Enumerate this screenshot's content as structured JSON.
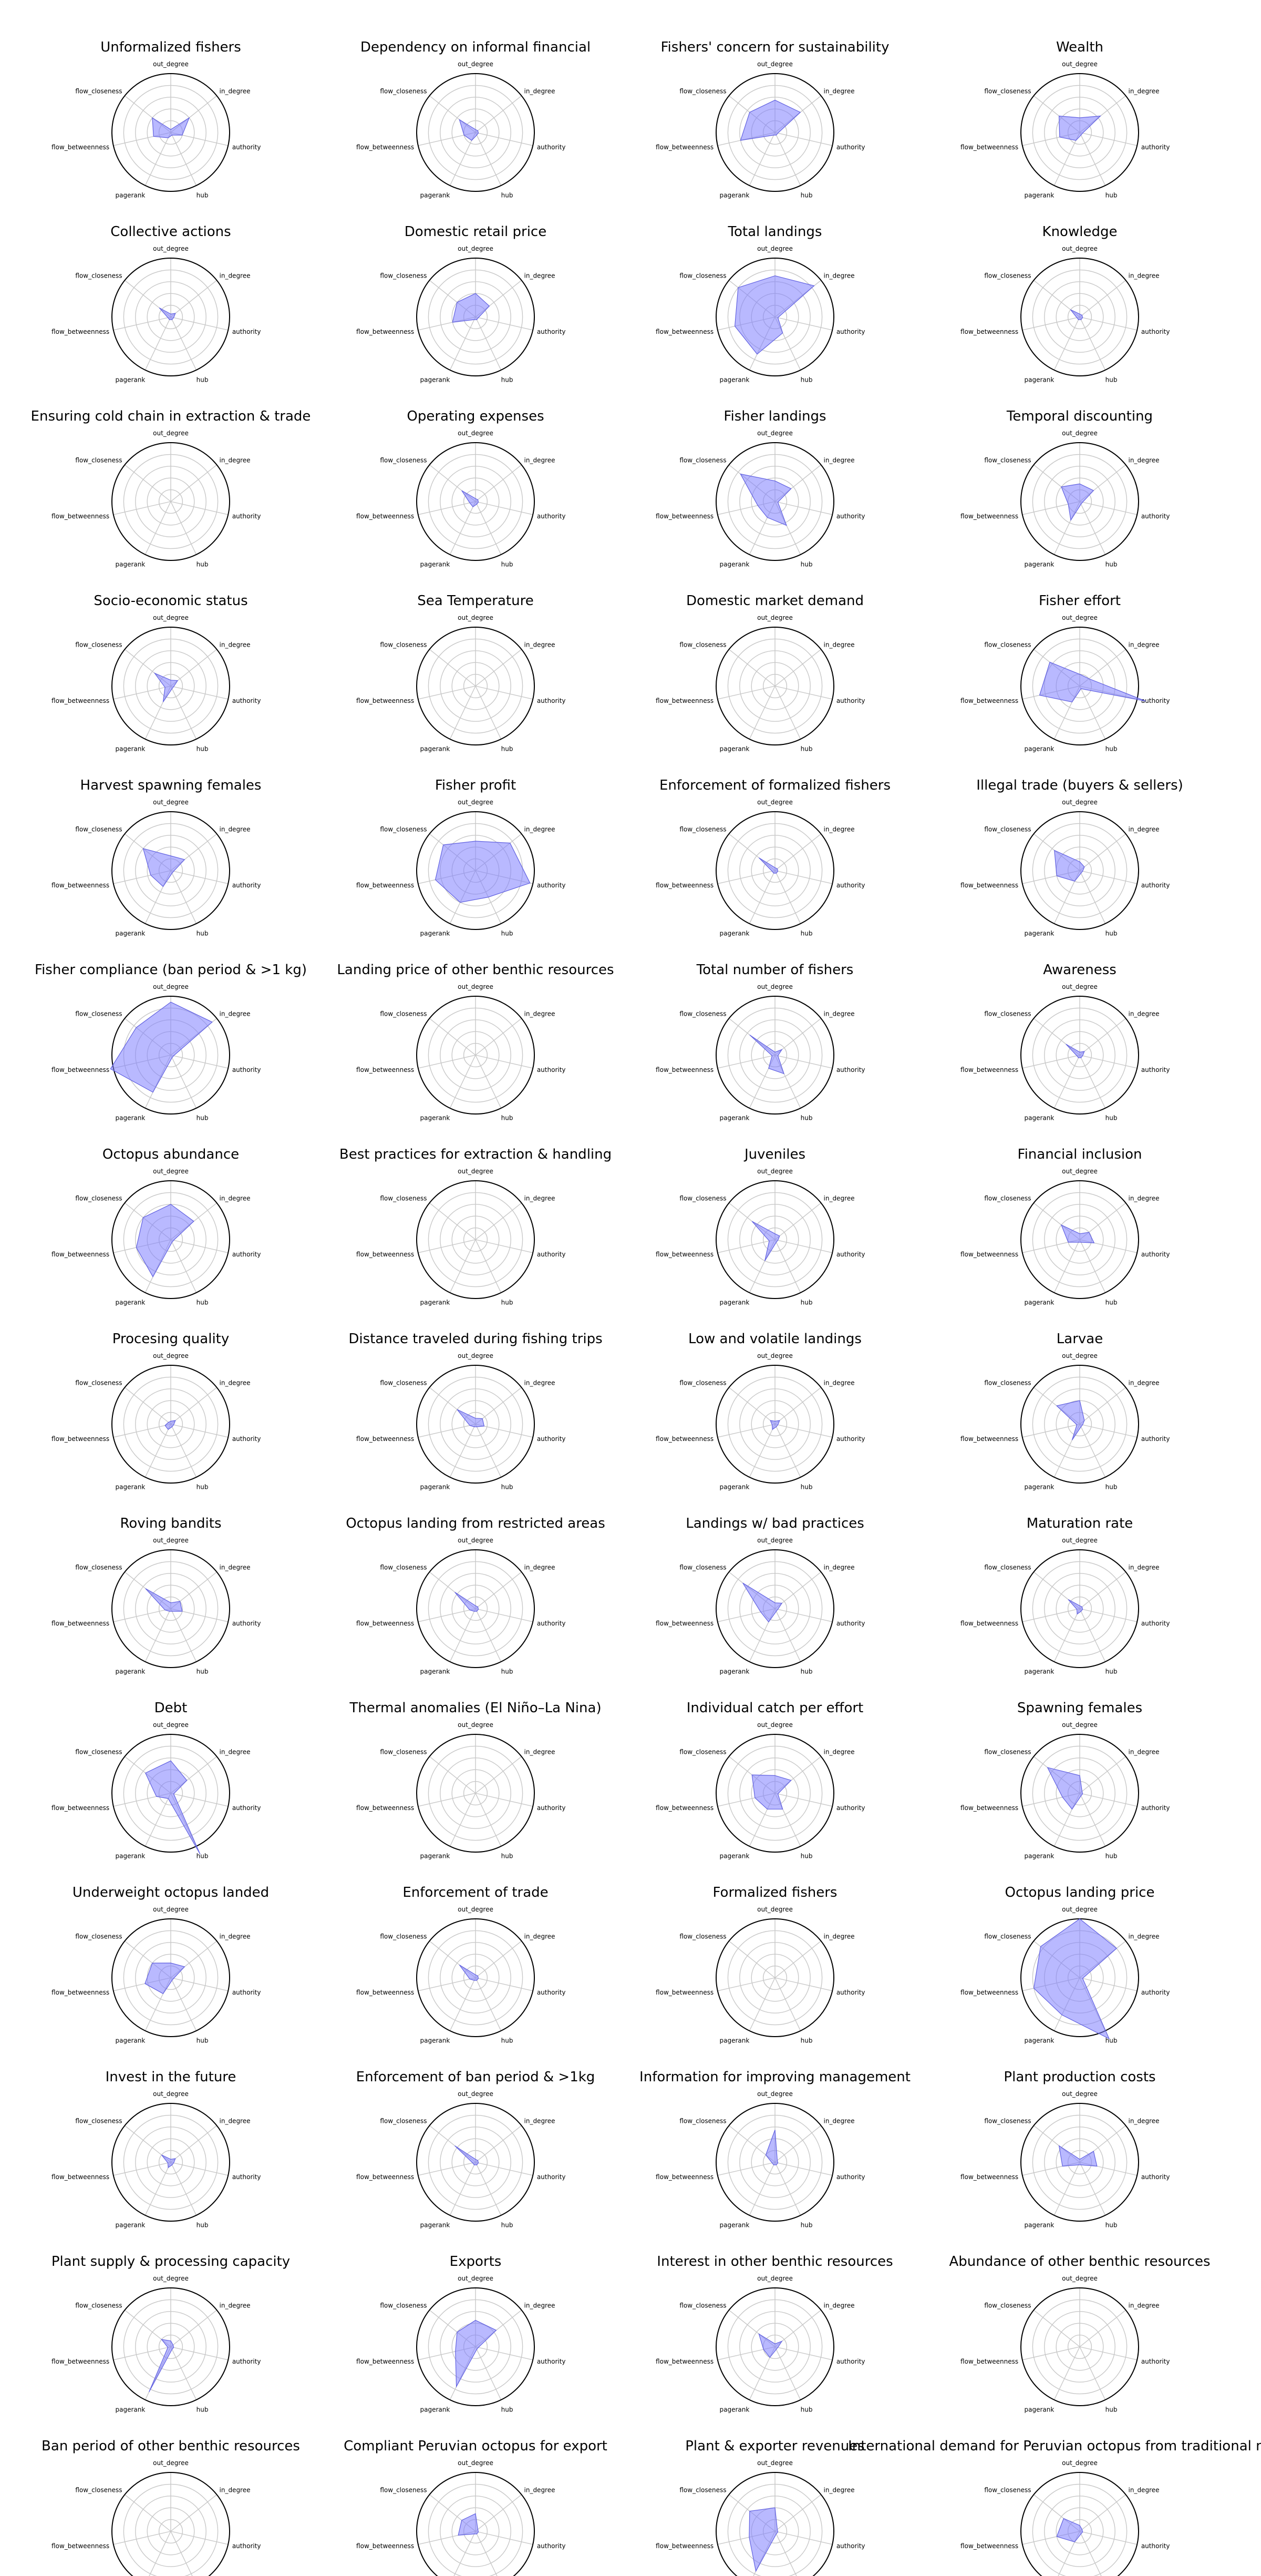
{
  "axes": [
    "out_degree",
    "in_degree",
    "authority",
    "hub",
    "pagerank",
    "flow_betweenness",
    "flow_closeness"
  ],
  "colors": {
    "fill": "#8080ff",
    "stroke": "#6060e0",
    "grid": "#c8c8c8",
    "outline": "#000000"
  },
  "chart_data": [
    {
      "type": "radar",
      "title": "Unformalized fishers",
      "values": [
        0.05,
        0.4,
        0.2,
        0.05,
        0.1,
        0.3,
        0.4
      ]
    },
    {
      "type": "radar",
      "title": "Dependency on informal financial",
      "values": [
        0.05,
        0.05,
        0.05,
        0.05,
        0.15,
        0.2,
        0.35
      ]
    },
    {
      "type": "radar",
      "title": "Fishers' concern for sustainability",
      "values": [
        0.55,
        0.55,
        0.05,
        0.05,
        0.05,
        0.6,
        0.55
      ]
    },
    {
      "type": "radar",
      "title": "Wealth",
      "values": [
        0.25,
        0.45,
        0.05,
        0.05,
        0.15,
        0.35,
        0.45
      ]
    },
    {
      "type": "radar",
      "title": "Collective actions",
      "values": [
        0.05,
        0.1,
        0.05,
        0.05,
        0.05,
        0.05,
        0.25
      ]
    },
    {
      "type": "radar",
      "title": "Domestic retail price",
      "values": [
        0.4,
        0.3,
        0.05,
        0.05,
        0.05,
        0.4,
        0.4
      ]
    },
    {
      "type": "radar",
      "title": "Total landings",
      "values": [
        0.7,
        0.85,
        0.05,
        0.3,
        0.7,
        0.7,
        0.8
      ]
    },
    {
      "type": "radar",
      "title": "Knowledge",
      "values": [
        0.05,
        0.05,
        0.05,
        0.05,
        0.05,
        0.05,
        0.2
      ]
    },
    {
      "type": "radar",
      "title": "Ensuring cold chain  in extraction & trade",
      "values": [
        0.0,
        0.0,
        0.0,
        0.0,
        0.0,
        0.0,
        0.0
      ]
    },
    {
      "type": "radar",
      "title": "Operating expenses",
      "values": [
        0.05,
        0.05,
        0.05,
        0.05,
        0.1,
        0.1,
        0.3
      ]
    },
    {
      "type": "radar",
      "title": "Fisher landings",
      "values": [
        0.35,
        0.35,
        0.05,
        0.45,
        0.3,
        0.3,
        0.75
      ]
    },
    {
      "type": "radar",
      "title": "Temporal discounting",
      "values": [
        0.3,
        0.3,
        0.05,
        0.05,
        0.35,
        0.2,
        0.4
      ]
    },
    {
      "type": "radar",
      "title": "Socio-economic status",
      "values": [
        0.1,
        0.15,
        0.05,
        0.05,
        0.3,
        0.1,
        0.35
      ]
    },
    {
      "type": "radar",
      "title": "Sea Temperature",
      "values": [
        0.0,
        0.0,
        0.0,
        0.0,
        0.0,
        0.0,
        0.0
      ]
    },
    {
      "type": "radar",
      "title": "Domestic market demand",
      "values": [
        0.0,
        0.0,
        0.0,
        0.0,
        0.0,
        0.0,
        0.0
      ]
    },
    {
      "type": "radar",
      "title": "Fisher effort",
      "values": [
        0.2,
        0.2,
        1.15,
        0.05,
        0.3,
        0.7,
        0.65
      ]
    },
    {
      "type": "radar",
      "title": "Harvest spawning females",
      "values": [
        0.25,
        0.3,
        0.05,
        0.05,
        0.3,
        0.35,
        0.6
      ]
    },
    {
      "type": "radar",
      "title": "Fisher profit",
      "values": [
        0.5,
        0.75,
        0.95,
        0.5,
        0.6,
        0.7,
        0.7
      ]
    },
    {
      "type": "radar",
      "title": "Enforcement of formalized fishers",
      "values": [
        0.05,
        0.05,
        0.05,
        0.05,
        0.05,
        0.05,
        0.35
      ]
    },
    {
      "type": "radar",
      "title": "Illegal trade (buyers & sellers)",
      "values": [
        0.15,
        0.1,
        0.05,
        0.05,
        0.2,
        0.4,
        0.55
      ]
    },
    {
      "type": "radar",
      "title": "Fisher compliance (ban period & >1 kg)",
      "values": [
        0.9,
        0.9,
        0.05,
        0.05,
        0.7,
        1.05,
        0.75
      ]
    },
    {
      "type": "radar",
      "title": "Landing price of other benthic resources",
      "values": [
        0.0,
        0.0,
        0.0,
        0.0,
        0.0,
        0.0,
        0.0
      ]
    },
    {
      "type": "radar",
      "title": "Total number of fishers",
      "values": [
        0.05,
        0.15,
        0.05,
        0.35,
        0.25,
        0.05,
        0.55
      ]
    },
    {
      "type": "radar",
      "title": "Awareness",
      "values": [
        0.05,
        0.1,
        0.05,
        0.05,
        0.05,
        0.05,
        0.3
      ]
    },
    {
      "type": "radar",
      "title": "Octopus abundance",
      "values": [
        0.6,
        0.5,
        0.05,
        0.05,
        0.7,
        0.6,
        0.6
      ]
    },
    {
      "type": "radar",
      "title": "Best practices for  extraction & handling",
      "values": [
        0.0,
        0.0,
        0.0,
        0.0,
        0.0,
        0.0,
        0.0
      ]
    },
    {
      "type": "radar",
      "title": "Juveniles",
      "values": [
        0.1,
        0.1,
        0.05,
        0.05,
        0.4,
        0.1,
        0.5
      ]
    },
    {
      "type": "radar",
      "title": "Financial inclusion",
      "values": [
        0.1,
        0.2,
        0.25,
        0.05,
        0.05,
        0.2,
        0.4
      ]
    },
    {
      "type": "radar",
      "title": "Procesing quality",
      "values": [
        0.05,
        0.1,
        0.05,
        0.05,
        0.1,
        0.1,
        0.05
      ]
    },
    {
      "type": "radar",
      "title": "Distance traveled during fishing trips",
      "values": [
        0.1,
        0.15,
        0.15,
        0.05,
        0.05,
        0.1,
        0.4
      ]
    },
    {
      "type": "radar",
      "title": "Low and volatile landings",
      "values": [
        0.05,
        0.1,
        0.05,
        0.05,
        0.1,
        0.05,
        0.1
      ]
    },
    {
      "type": "radar",
      "title": "Larvae",
      "values": [
        0.4,
        0.1,
        0.05,
        0.05,
        0.3,
        0.05,
        0.5
      ]
    },
    {
      "type": "radar",
      "title": "Roving bandits",
      "values": [
        0.1,
        0.2,
        0.2,
        0.05,
        0.05,
        0.1,
        0.55
      ]
    },
    {
      "type": "radar",
      "title": "Octopus landing from restricted areas",
      "values": [
        0.05,
        0.05,
        0.05,
        0.05,
        0.05,
        0.1,
        0.45
      ]
    },
    {
      "type": "radar",
      "title": "Landings w/ bad practices",
      "values": [
        0.1,
        0.15,
        0.05,
        0.05,
        0.25,
        0.25,
        0.7
      ]
    },
    {
      "type": "radar",
      "title": "Maturation rate",
      "values": [
        0.05,
        0.05,
        0.05,
        0.05,
        0.1,
        0.05,
        0.25
      ]
    },
    {
      "type": "radar",
      "title": "Debt",
      "values": [
        0.55,
        0.35,
        0.05,
        1.15,
        0.1,
        0.25,
        0.55
      ]
    },
    {
      "type": "radar",
      "title": "Thermal anomalies (El Niño–La Nina)",
      "values": [
        0.0,
        0.0,
        0.0,
        0.0,
        0.0,
        0.0,
        0.0
      ]
    },
    {
      "type": "radar",
      "title": "Individual catch per effort",
      "values": [
        0.3,
        0.35,
        0.05,
        0.3,
        0.3,
        0.35,
        0.5
      ]
    },
    {
      "type": "radar",
      "title": "Spawning females",
      "values": [
        0.3,
        0.05,
        0.05,
        0.05,
        0.3,
        0.3,
        0.7
      ]
    },
    {
      "type": "radar",
      "title": "Underweight octopus landed",
      "values": [
        0.25,
        0.3,
        0.05,
        0.05,
        0.3,
        0.45,
        0.4
      ]
    },
    {
      "type": "radar",
      "title": "Enforcement of trade",
      "values": [
        0.05,
        0.05,
        0.05,
        0.05,
        0.05,
        0.1,
        0.35
      ]
    },
    {
      "type": "radar",
      "title": "Formalized fishers",
      "values": [
        0.0,
        0.0,
        0.0,
        0.0,
        0.0,
        0.0,
        0.0
      ]
    },
    {
      "type": "radar",
      "title": "Octopus landing price",
      "values": [
        1.0,
        0.8,
        0.05,
        1.15,
        0.7,
        0.8,
        0.85
      ]
    },
    {
      "type": "radar",
      "title": "Invest in the future",
      "values": [
        0.05,
        0.1,
        0.05,
        0.05,
        0.1,
        0.05,
        0.2
      ]
    },
    {
      "type": "radar",
      "title": "Enforcement of ban period & >1kg",
      "values": [
        0.05,
        0.05,
        0.05,
        0.05,
        0.05,
        0.05,
        0.45
      ]
    },
    {
      "type": "radar",
      "title": "Information for improving management",
      "values": [
        0.55,
        0.05,
        0.05,
        0.05,
        0.05,
        0.05,
        0.2
      ]
    },
    {
      "type": "radar",
      "title": "Plant production costs",
      "values": [
        0.05,
        0.3,
        0.3,
        0.05,
        0.05,
        0.3,
        0.45
      ]
    },
    {
      "type": "radar",
      "title": "Plant supply & processing capacity",
      "values": [
        0.1,
        0.05,
        0.05,
        0.05,
        0.85,
        0.05,
        0.2
      ]
    },
    {
      "type": "radar",
      "title": "Exports",
      "values": [
        0.45,
        0.45,
        0.05,
        0.05,
        0.75,
        0.35,
        0.4
      ]
    },
    {
      "type": "radar",
      "title": "Interest in other benthic resources",
      "values": [
        0.05,
        0.15,
        0.05,
        0.05,
        0.2,
        0.2,
        0.35
      ]
    },
    {
      "type": "radar",
      "title": "Abundance of other benthic resources",
      "values": [
        0.0,
        0.0,
        0.0,
        0.0,
        0.0,
        0.0,
        0.0
      ]
    },
    {
      "type": "radar",
      "title": "Ban period of other benthic resources",
      "values": [
        0.0,
        0.0,
        0.0,
        0.0,
        0.0,
        0.0,
        0.0
      ]
    },
    {
      "type": "radar",
      "title": "Compliant Peruvian octopus for export",
      "values": [
        0.3,
        0.05,
        0.05,
        0.05,
        0.05,
        0.3,
        0.3
      ]
    },
    {
      "type": "radar",
      "title": "Plant & exporter revenues",
      "values": [
        0.4,
        0.05,
        0.05,
        0.05,
        0.75,
        0.45,
        0.55
      ]
    },
    {
      "type": "radar",
      "title": "International demand  for Peruvian octopus from  traditional markets",
      "values": [
        0.1,
        0.05,
        0.05,
        0.05,
        0.2,
        0.4,
        0.35
      ]
    }
  ]
}
